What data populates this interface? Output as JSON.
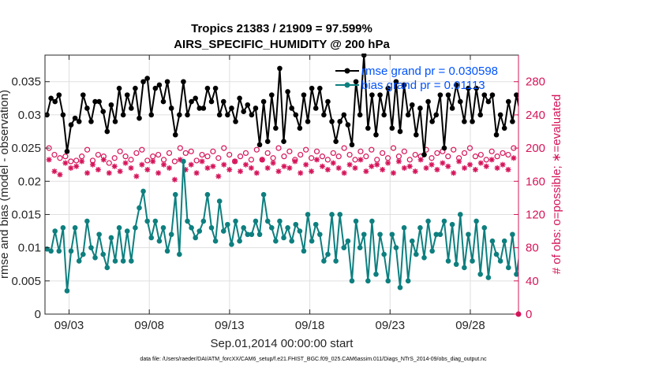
{
  "chart_data": {
    "type": "line",
    "title": "Tropics 21383 / 21909 = 97.599%",
    "subtitle": "AIRS_SPECIFIC_HUMIDITY @ 200 hPa",
    "xlabel": "Sep.01,2014 00:00:00 start",
    "ylabel": "rmse and bias (model - observation)",
    "ylabel_right": "# of obs: o=possible; ∗=evaluated",
    "footnote": "data file: /Users/raeder/DAI/ATM_forcXX/CAM6_setup/f.e21.FHIST_BGC.f09_025.CAM6assim.011/Diags_NTrS_2014-09/obs_diag_output.nc",
    "xlim": [
      1.5,
      31.0
    ],
    "ylim": [
      0,
      0.039
    ],
    "ylim_right": [
      0,
      312
    ],
    "x_ticks": [
      3,
      8,
      13,
      18,
      23,
      28
    ],
    "x_tick_labels": [
      "09/03",
      "09/08",
      "09/13",
      "09/18",
      "09/23",
      "09/28"
    ],
    "y_ticks": [
      0,
      0.005,
      0.01,
      0.015,
      0.02,
      0.025,
      0.03,
      0.035
    ],
    "y_tick_labels": [
      "0",
      "0.005",
      "0.01",
      "0.015",
      "0.02",
      "0.025",
      "0.03",
      "0.035"
    ],
    "y2_ticks": [
      0,
      40,
      80,
      120,
      160,
      200,
      240,
      280
    ],
    "y2_tick_labels": [
      "0",
      "40",
      "80",
      "120",
      "160",
      "200",
      "240",
      "280"
    ],
    "grid": true,
    "legend_position": "top-right",
    "colors": {
      "rmse": "#000000",
      "bias": "#0e7f7f",
      "obs": "#d6145a",
      "legend_text": "#0052ff",
      "right_axis": "#d6145a"
    },
    "x_start": 1.625,
    "x_step": 0.25,
    "series": [
      {
        "name": "rmse grand pr = 0.030598",
        "values": [
          0.03,
          0.0325,
          0.032,
          0.033,
          0.03,
          0.0245,
          0.0285,
          0.0295,
          0.029,
          0.033,
          0.031,
          0.029,
          0.032,
          0.032,
          0.0305,
          0.0275,
          0.0315,
          0.029,
          0.034,
          0.03,
          0.033,
          0.031,
          0.034,
          0.0295,
          0.035,
          0.0355,
          0.03,
          0.034,
          0.0345,
          0.032,
          0.035,
          0.031,
          0.027,
          0.03,
          0.035,
          0.03,
          0.032,
          0.0325,
          0.031,
          0.031,
          0.034,
          0.032,
          0.034,
          0.03,
          0.032,
          0.03,
          0.031,
          0.029,
          0.0325,
          0.0305,
          0.0315,
          0.03,
          0.031,
          0.0255,
          0.032,
          0.026,
          0.033,
          0.028,
          0.037,
          0.026,
          0.0335,
          0.031,
          0.03,
          0.028,
          0.033,
          0.029,
          0.034,
          0.031,
          0.034,
          0.03,
          0.032,
          0.029,
          0.026,
          0.029,
          0.03,
          0.0285,
          0.0255,
          0.035,
          0.03,
          0.039,
          0.028,
          0.033,
          0.027,
          0.033,
          0.03,
          0.034,
          0.028,
          0.035,
          0.0275,
          0.0345,
          0.03,
          0.0315,
          0.027,
          0.031,
          0.024,
          0.032,
          0.029,
          0.03,
          0.033,
          0.025,
          0.033,
          0.031,
          0.0345,
          0.032,
          0.029,
          0.034,
          0.029,
          0.034,
          0.03,
          0.033,
          0.032,
          0.033,
          0.027,
          0.03,
          0.028,
          0.032,
          0.029,
          0.033,
          0.03,
          0.032,
          0.028,
          0.033,
          0.031,
          0.0315,
          0.03,
          0.031,
          0.028,
          0.033,
          0.027,
          0.032,
          0.03,
          0.0305,
          0.026,
          0.0325,
          0.03,
          0.0315,
          0.029,
          0.0325,
          0.028,
          0.033,
          0.03,
          0.031,
          0.03,
          0.0285,
          0.032,
          0.03,
          0.034,
          0.03,
          0.03,
          0.034,
          0.029,
          0.0335,
          0.028,
          0.032,
          0.028,
          0.03,
          0.032,
          0.03,
          0.0315,
          0.029,
          0.028,
          0.033,
          0.0285,
          0.03,
          0.028,
          0.029,
          0.028,
          0.0275,
          0.031,
          0.028,
          0.033,
          0.029,
          0.0305,
          0.0295,
          0.033,
          0.028,
          0.031,
          0.029,
          0.0265,
          0.026,
          0.0295,
          0.028,
          0.03,
          0.026,
          0.0275,
          0.031,
          0.024,
          0.026,
          0.0295,
          0.03,
          0.0255,
          0.0285,
          0.0255,
          0.029,
          0.028,
          0.03,
          0.025,
          0.0325
        ]
      },
      {
        "name": "bias grand pr = 0.01113",
        "values": [
          0.0098,
          0.0095,
          0.0125,
          0.0095,
          0.013,
          0.0035,
          0.0095,
          0.013,
          0.008,
          0.009,
          0.014,
          0.01,
          0.0085,
          0.012,
          0.009,
          0.007,
          0.0115,
          0.008,
          0.013,
          0.008,
          0.0125,
          0.008,
          0.013,
          0.016,
          0.0185,
          0.014,
          0.0115,
          0.014,
          0.011,
          0.013,
          0.0095,
          0.012,
          0.018,
          0.009,
          0.023,
          0.014,
          0.013,
          0.0115,
          0.0125,
          0.014,
          0.018,
          0.013,
          0.011,
          0.017,
          0.0125,
          0.0135,
          0.0105,
          0.014,
          0.011,
          0.013,
          0.012,
          0.012,
          0.014,
          0.012,
          0.018,
          0.014,
          0.013,
          0.011,
          0.014,
          0.0115,
          0.013,
          0.011,
          0.0135,
          0.0125,
          0.0095,
          0.015,
          0.011,
          0.0135,
          0.012,
          0.008,
          0.009,
          0.015,
          0.008,
          0.015,
          0.01,
          0.011,
          0.005,
          0.014,
          0.01,
          0.012,
          0.005,
          0.014,
          0.006,
          0.012,
          0.009,
          0.005,
          0.012,
          0.01,
          0.004,
          0.013,
          0.005,
          0.011,
          0.009,
          0.013,
          0.0085,
          0.014,
          0.0095,
          0.012,
          0.012,
          0.014,
          0.008,
          0.0135,
          0.0075,
          0.015,
          0.007,
          0.012,
          0.008,
          0.014,
          0.006,
          0.013,
          0.0055,
          0.011,
          0.009,
          0.008,
          0.011,
          0.007,
          0.012,
          0.006,
          0.01,
          0.0095,
          0.011,
          0.0085,
          0.0095,
          0.011,
          0.009,
          0.009,
          0.01,
          0.006,
          0.0095,
          0.011,
          0.008,
          0.012,
          0.01,
          0.009,
          0.013,
          0.009,
          0.0115,
          0.006,
          0.0125,
          0.008,
          0.012,
          0.008,
          0.013,
          0.01,
          0.012,
          0.005,
          0.013,
          0.008,
          0.014,
          0.012,
          0.009,
          0.0125,
          0.01,
          0.012,
          0.01,
          0.011,
          0.012,
          0.011,
          0.013,
          0.01,
          0.01,
          0.014,
          0.009,
          0.007,
          0.012,
          0.01,
          0.01,
          0.009,
          0.013,
          0.01,
          0.008,
          0.011,
          0.009,
          0.023,
          0.012,
          0.007,
          0.011,
          0.008,
          0.016,
          0.01,
          0.009,
          0.012,
          0.008,
          0.011,
          0.006,
          0.008,
          0.012,
          0.007,
          0.011,
          0.008,
          0.013,
          0.009,
          0.012,
          0.012,
          0.014
        ]
      }
    ],
    "obs_possible_values": [
      200,
      192,
      188,
      190,
      184,
      185,
      190,
      198,
      185,
      192,
      190,
      182,
      188,
      196,
      190,
      186,
      194,
      198,
      185,
      190,
      192,
      186,
      194,
      184,
      200,
      194,
      196,
      185,
      192,
      190,
      196,
      188,
      200,
      192,
      184,
      190,
      194,
      186,
      198,
      186,
      194,
      188,
      200,
      190,
      196,
      186,
      192,
      198,
      188,
      196,
      190,
      186,
      194,
      190,
      200,
      192,
      186,
      196,
      190,
      198,
      186,
      194,
      188,
      200,
      190,
      196,
      186,
      192,
      190,
      198,
      188,
      194,
      196,
      190,
      198,
      188,
      194,
      200,
      190,
      192,
      186,
      196,
      190,
      194,
      192,
      200
    ],
    "obs_evaluated_values": [
      186,
      172,
      168,
      182,
      176,
      178,
      184,
      170,
      180,
      174,
      186,
      170,
      178,
      172,
      182,
      176,
      166,
      180,
      174,
      184,
      170,
      180,
      176,
      162,
      186,
      174,
      180,
      170,
      184,
      176,
      178,
      166,
      180,
      174,
      184,
      172,
      180,
      176,
      170,
      186,
      176,
      182,
      172,
      178,
      176,
      184,
      170,
      180,
      172,
      186,
      178,
      174,
      182,
      176,
      170,
      180,
      176,
      186,
      172,
      178,
      180,
      174,
      182,
      170,
      184,
      176,
      178,
      172,
      186,
      176,
      180,
      174,
      182,
      178,
      170,
      184,
      176,
      180,
      174,
      182,
      178,
      186,
      176,
      180,
      174,
      188
    ]
  }
}
